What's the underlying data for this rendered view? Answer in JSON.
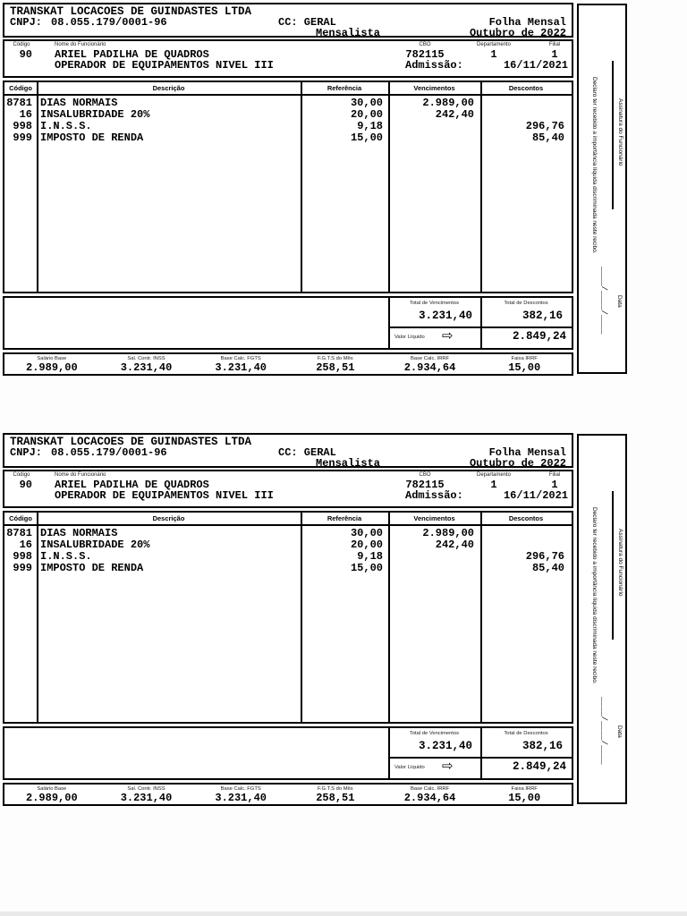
{
  "payslip": {
    "company": {
      "name": "TRANSKAT LOCACOES DE GUINDASTES LTDA",
      "cnpj_label": "CNPJ:",
      "cnpj": "08.055.179/0001-96",
      "cost_center": "CC: GERAL",
      "payroll_type": "Mensalista",
      "doc_title": "Folha Mensal",
      "period": "Outubro de 2022"
    },
    "employee": {
      "code_label": "Código",
      "code": "90",
      "name_label": "Nome do Funcionário",
      "name": "ARIEL PADILHA DE QUADROS",
      "role": "OPERADOR DE EQUIPAMENTOS NIVEL III",
      "cbo_label": "CBO",
      "cbo": "782115",
      "dept_label": "Departamento",
      "dept": "1",
      "branch_label": "Filial",
      "branch": "1",
      "admission_label": "Admissão:",
      "admission": "16/11/2021"
    },
    "table": {
      "headers": {
        "code": "Código",
        "description": "Descrição",
        "reference": "Referência",
        "earnings": "Vencimentos",
        "deductions": "Descontos"
      },
      "rows": [
        {
          "code": "8781",
          "description": "DIAS NORMAIS",
          "reference": "30,00",
          "earnings": "2.989,00",
          "deductions": ""
        },
        {
          "code": "16",
          "description": "INSALUBRIDADE 20%",
          "reference": "20,00",
          "earnings": "242,40",
          "deductions": ""
        },
        {
          "code": "998",
          "description": "I.N.S.S.",
          "reference": "9,18",
          "earnings": "",
          "deductions": "296,76"
        },
        {
          "code": "999",
          "description": "IMPOSTO DE RENDA",
          "reference": "15,00",
          "earnings": "",
          "deductions": "85,40"
        }
      ]
    },
    "totals": {
      "earnings_label": "Total de Vencimentos",
      "earnings": "3.231,40",
      "deductions_label": "Total de Descontos",
      "deductions": "382,16",
      "net_label": "Valor Líquido",
      "net_arrow_icon": "⇨",
      "net": "2.849,24"
    },
    "footer": [
      {
        "label": "Salário Base",
        "value": "2.989,00"
      },
      {
        "label": "Sal. Contr. INSS",
        "value": "3.231,40"
      },
      {
        "label": "Base Calc. FGTS",
        "value": "3.231,40"
      },
      {
        "label": "F.G.T.S do Mês",
        "value": "258,51"
      },
      {
        "label": "Base Calc. IRRF",
        "value": "2.934,64"
      },
      {
        "label": "Faixa IRRF",
        "value": "15,00"
      }
    ],
    "sidebar": {
      "declaration": "Declaro ter recebido a importância líquida discriminada neste recibo.",
      "signature_label": "Assinatura do Funcionário",
      "date_line": "____/____/____",
      "date_label": "Data"
    }
  }
}
